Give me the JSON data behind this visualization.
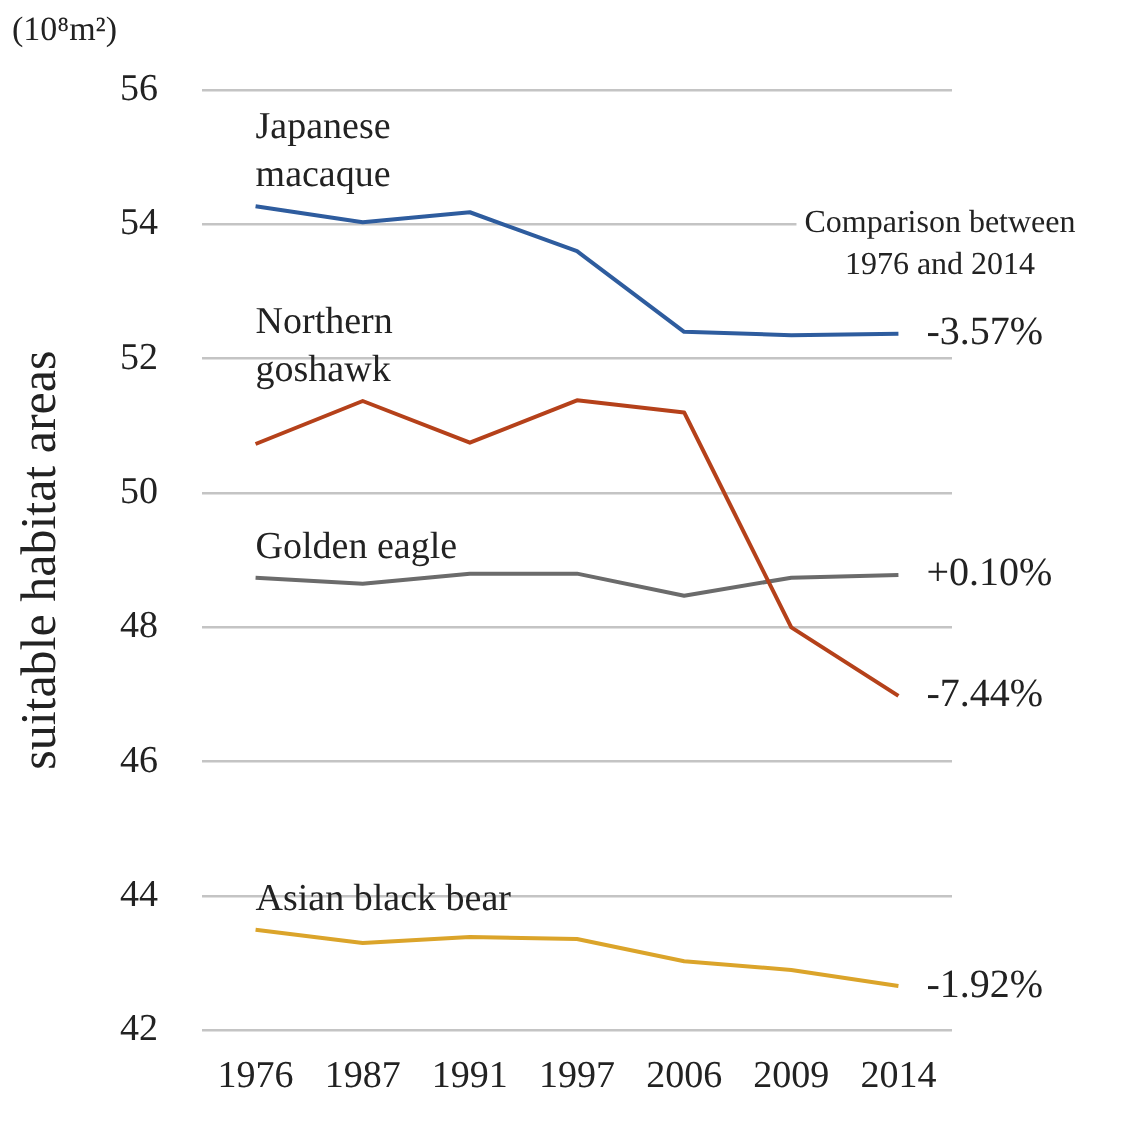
{
  "chart_data": {
    "type": "line",
    "ylabel": "suitable habitat areas",
    "categories": [
      "1976",
      "1987",
      "1991",
      "1997",
      "2006",
      "2009",
      "2014"
    ],
    "series": [
      {
        "name": "Japanese macaque",
        "color": "#2e5c9e",
        "values": [
          54.27,
          54.03,
          54.18,
          53.6,
          52.4,
          52.35,
          52.37
        ]
      },
      {
        "name": "Northern goshawk",
        "color": "#b5411a",
        "values": [
          50.73,
          51.37,
          50.75,
          51.38,
          51.2,
          48.0,
          46.98
        ]
      },
      {
        "name": "Golden eagle",
        "color": "#6b6b6b",
        "values": [
          48.74,
          48.65,
          48.8,
          48.8,
          48.47,
          48.74,
          48.78
        ]
      },
      {
        "name": "Asian black bear",
        "color": "#dba42a",
        "values": [
          43.5,
          43.3,
          43.39,
          43.36,
          43.03,
          42.9,
          42.66
        ]
      }
    ],
    "ylim": [
      42,
      56
    ],
    "yticks": [
      42,
      44,
      46,
      48,
      50,
      52,
      54,
      56
    ],
    "grid": "y",
    "legend": false,
    "marker": "none",
    "line_style": "solid",
    "annotations": [
      "(10⁸m²)",
      "Comparison between 1976 and 2014",
      {
        "text": "-3.57%",
        "x": "2014",
        "y": 52.37
      },
      {
        "text": "-7.44%",
        "x": "2014",
        "y": 46.98
      },
      {
        "text": "+0.10%",
        "x": "2014",
        "y": 48.78
      },
      {
        "text": "-1.92%",
        "x": "2014",
        "y": 42.66
      }
    ]
  }
}
